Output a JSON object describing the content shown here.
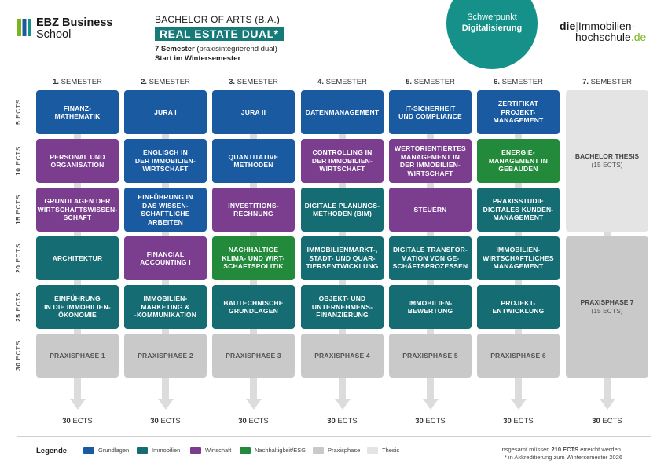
{
  "header": {
    "logo_left_line1": "EBZ Business",
    "logo_left_line2": "School",
    "title_line1": "BACHELOR OF ARTS (B.A.)",
    "title_line2": "REAL ESTATE DUAL*",
    "title_line3_bold": "7 Semester",
    "title_line3_rest": " (praxisintegrierend dual)",
    "title_line4": "Start im Wintersemester",
    "focus_line1": "Schwerpunkt",
    "focus_line2": "Digitalisierung",
    "logo_right_die": "die",
    "logo_right_sep": "|",
    "logo_right_word1": "Immobilien-",
    "logo_right_word2": "hochschule",
    "logo_right_tld": ".de"
  },
  "colors": {
    "grundlagen": "#1a5aa0",
    "immobilien": "#156d73",
    "wirtschaft": "#7b3e8e",
    "nachhaltigkeit": "#238a3b",
    "praxisphase": "#c9c9c9",
    "thesis": "#e4e4e4"
  },
  "rows": [
    {
      "num": "5",
      "unit": " ECTS"
    },
    {
      "num": "10",
      "unit": " ECTS"
    },
    {
      "num": "15",
      "unit": " ECTS"
    },
    {
      "num": "20",
      "unit": " ECTS"
    },
    {
      "num": "25",
      "unit": " ECTS"
    },
    {
      "num": "30",
      "unit": " ECTS"
    }
  ],
  "semesters": [
    {
      "num": "1.",
      "label": " SEMESTER",
      "total_num": "30",
      "total_unit": " ECTS",
      "modules": [
        {
          "text": "FINANZ-\nMATHEMATIK",
          "cat": "grundlagen"
        },
        {
          "text": "PERSONAL UND\nORGANISATION",
          "cat": "wirtschaft"
        },
        {
          "text": "GRUNDLAGEN DER\nWIRTSCHAFTSWISSEN-\nSCHAFT",
          "cat": "wirtschaft"
        },
        {
          "text": "ARCHITEKTUR",
          "cat": "immobilien"
        },
        {
          "text": "EINFÜHRUNG\nIN DIE IMMOBILIEN-\nÖKONOMIE",
          "cat": "immobilien"
        },
        {
          "text": "PRAXISPHASE 1",
          "cat": "praxisphase"
        }
      ]
    },
    {
      "num": "2.",
      "label": " SEMESTER",
      "total_num": "30",
      "total_unit": " ECTS",
      "modules": [
        {
          "text": "JURA I",
          "cat": "grundlagen"
        },
        {
          "text": "ENGLISCH IN\nDER IMMOBILIEN-\nWIRTSCHAFT",
          "cat": "grundlagen"
        },
        {
          "text": "EINFÜHRUNG IN\nDAS WISSEN-\nSCHAFTLICHE\nARBEITEN",
          "cat": "grundlagen"
        },
        {
          "text": "FINANCIAL\nACCOUNTING I",
          "cat": "wirtschaft"
        },
        {
          "text": "IMMOBILIEN-\nMARKETING &\n-KOMMUNIKATION",
          "cat": "immobilien"
        },
        {
          "text": "PRAXISPHASE 2",
          "cat": "praxisphase"
        }
      ]
    },
    {
      "num": "3.",
      "label": " SEMESTER",
      "total_num": "30",
      "total_unit": " ECTS",
      "modules": [
        {
          "text": "JURA II",
          "cat": "grundlagen"
        },
        {
          "text": "QUANTITATIVE\nMETHODEN",
          "cat": "grundlagen"
        },
        {
          "text": "INVESTITIONS-\nRECHNUNG",
          "cat": "wirtschaft"
        },
        {
          "text": "NACHHALTIGE\nKLIMA- UND WIRT-\nSCHAFTSPOLITIK",
          "cat": "nachhaltigkeit"
        },
        {
          "text": "BAUTECHNISCHE\nGRUNDLAGEN",
          "cat": "immobilien"
        },
        {
          "text": "PRAXISPHASE 3",
          "cat": "praxisphase"
        }
      ]
    },
    {
      "num": "4.",
      "label": " SEMESTER",
      "total_num": "30",
      "total_unit": " ECTS",
      "modules": [
        {
          "text": "DATENMANAGEMENT",
          "cat": "grundlagen"
        },
        {
          "text": "CONTROLLING IN\nDER IMMOBILIEN-\nWIRTSCHAFT",
          "cat": "wirtschaft"
        },
        {
          "text": "DIGITALE PLANUNGS-\nMETHODEN (BIM)",
          "cat": "immobilien"
        },
        {
          "text": "IMMOBILIENMARKT-,\nSTADT- UND QUAR-\nTIERSENTWICKLUNG",
          "cat": "immobilien"
        },
        {
          "text": "OBJEKT- UND\nUNTERNEHMENS-\nFINANZIERUNG",
          "cat": "immobilien"
        },
        {
          "text": "PRAXISPHASE 4",
          "cat": "praxisphase"
        }
      ]
    },
    {
      "num": "5.",
      "label": " SEMESTER",
      "total_num": "30",
      "total_unit": " ECTS",
      "modules": [
        {
          "text": "IT-SICHERHEIT\nUND COMPLIANCE",
          "cat": "grundlagen"
        },
        {
          "text": "WERTORIENTIERTES\nMANAGEMENT IN\nDER IMMOBILIEN-\nWIRTSCHAFT",
          "cat": "wirtschaft"
        },
        {
          "text": "STEUERN",
          "cat": "wirtschaft"
        },
        {
          "text": "DIGITALE TRANSFOR-\nMATION VON GE-\nSCHÄFTSPROZESSEN",
          "cat": "immobilien"
        },
        {
          "text": "IMMOBILIEN-\nBEWERTUNG",
          "cat": "immobilien"
        },
        {
          "text": "PRAXISPHASE 5",
          "cat": "praxisphase"
        }
      ]
    },
    {
      "num": "6.",
      "label": " SEMESTER",
      "total_num": "30",
      "total_unit": " ECTS",
      "modules": [
        {
          "text": "ZERTIFIKAT PROJEKT-\nMANAGEMENT",
          "cat": "grundlagen"
        },
        {
          "text": "ENERGIE-\nMANAGEMENT IN\nGEBÄUDEN",
          "cat": "nachhaltigkeit"
        },
        {
          "text": "PRAXISSTUDIE\nDIGITALES KUNDEN-\nMANAGEMENT",
          "cat": "immobilien"
        },
        {
          "text": "IMMOBILIEN-\nWIRTSCHAFTLICHES\nMANAGEMENT",
          "cat": "immobilien"
        },
        {
          "text": "PROJEKT-\nENTWICKLUNG",
          "cat": "immobilien"
        },
        {
          "text": "PRAXISPHASE 6",
          "cat": "praxisphase"
        }
      ]
    }
  ],
  "semester7": {
    "num": "7.",
    "label": " SEMESTER",
    "total_num": "30",
    "total_unit": " ECTS",
    "thesis_title": "BACHELOR THESIS",
    "thesis_ects": "(15 ECTS)",
    "praxis_title": "PRAXISPHASE 7",
    "praxis_ects": "(15 ECTS)"
  },
  "legend": {
    "title": "Legende",
    "items": [
      {
        "label": "Grundlagen",
        "cat": "grundlagen"
      },
      {
        "label": "Immobilien",
        "cat": "immobilien"
      },
      {
        "label": "Wirtschaft",
        "cat": "wirtschaft"
      },
      {
        "label": "Nachhaltigkeit/ESG",
        "cat": "nachhaltigkeit"
      },
      {
        "label": "Praxisphase",
        "cat": "praxisphase"
      },
      {
        "label": "Thesis",
        "cat": "thesis"
      }
    ],
    "note1_pre": "Insgesamt müssen ",
    "note1_bold": "210 ECTS",
    "note1_post": " erreicht werden.",
    "note2": "* in Akkreditierung zum Wintersemester 2026"
  }
}
